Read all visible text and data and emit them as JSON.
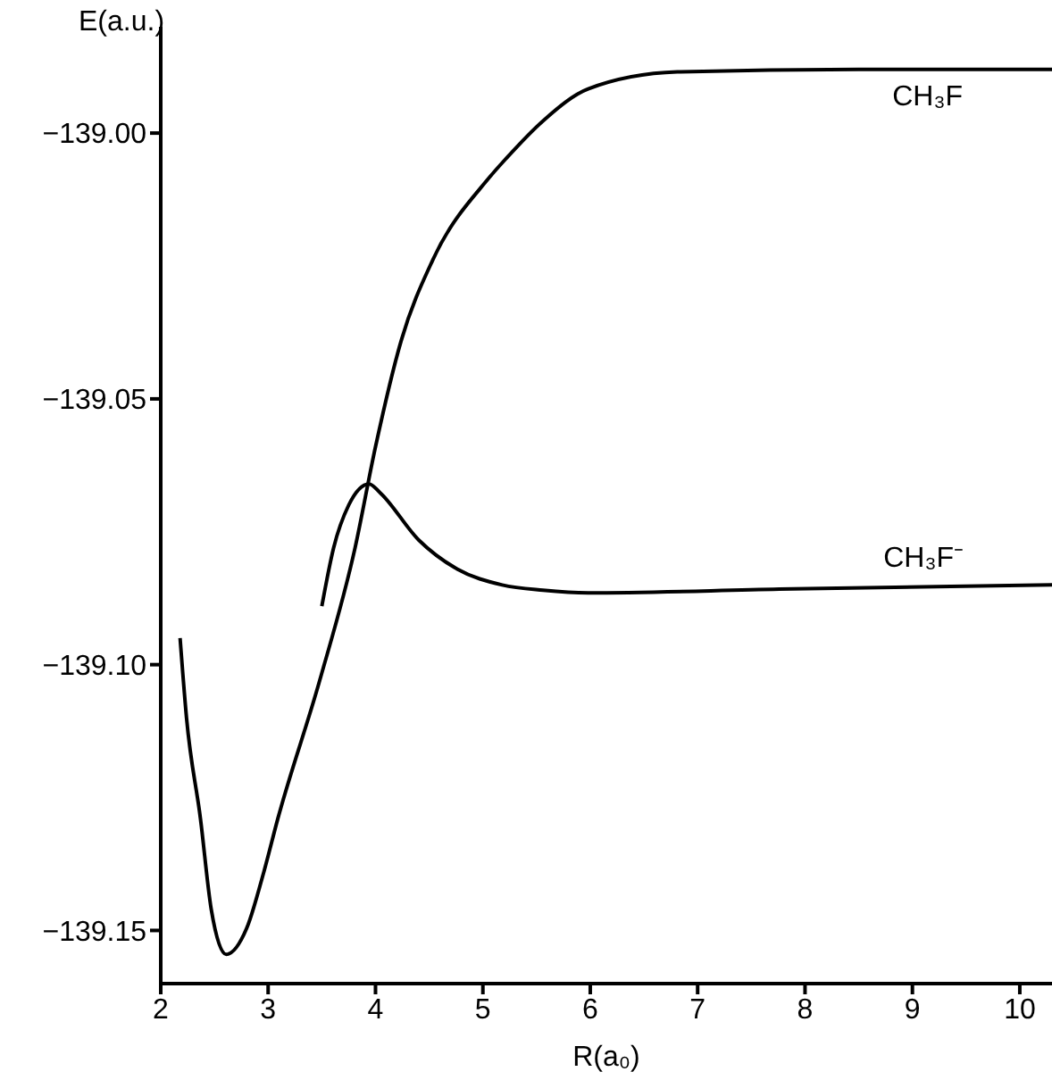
{
  "chart_data": {
    "type": "line",
    "xlabel": "R(a₀)",
    "ylabel": "E(a.u.)",
    "xlim": [
      2,
      10.3
    ],
    "xticks": [
      2,
      3,
      4,
      5,
      6,
      7,
      8,
      9,
      10
    ],
    "ylim": [
      -139.16,
      -138.98
    ],
    "yticks": [
      {
        "value": -139,
        "label": "−139.00"
      },
      {
        "value": -139.05,
        "label": "−139.05"
      },
      {
        "value": -139.1,
        "label": "−139.10"
      },
      {
        "value": -139.15,
        "label": "−139.15"
      }
    ],
    "series": [
      {
        "name": "CH₃F",
        "color": "#000000",
        "x": [
          2.18,
          2.24,
          2.37,
          2.47,
          2.61,
          2.8,
          2.96,
          3.09,
          3.48,
          3.81,
          4.0,
          4.24,
          4.53,
          5.05,
          5.22,
          5.56,
          5.98,
          6.81,
          8.5,
          10.3
        ],
        "values": [
          -139.095,
          -139.11,
          -139.129,
          -139.146,
          -139.1545,
          -139.1496,
          -139.139,
          -139.129,
          -139.103,
          -139.078,
          -139.059,
          -139.039,
          -139.024,
          -139.0086,
          -139.0047,
          -138.9977,
          -138.9917,
          -138.9885,
          -138.988,
          -138.988
        ]
      },
      {
        "name": "CH₃F⁻",
        "color": "#000000",
        "x": [
          3.5,
          3.61,
          3.75,
          3.94,
          4.04,
          4.4,
          4.76,
          5.18,
          5.56,
          5.98,
          7.76,
          10.3
        ],
        "values": [
          -139.089,
          -139.078,
          -139.07,
          -139.066,
          -139.0676,
          -139.0765,
          -139.082,
          -139.085,
          -139.086,
          -139.0865,
          -139.0858,
          -139.085
        ]
      }
    ]
  }
}
